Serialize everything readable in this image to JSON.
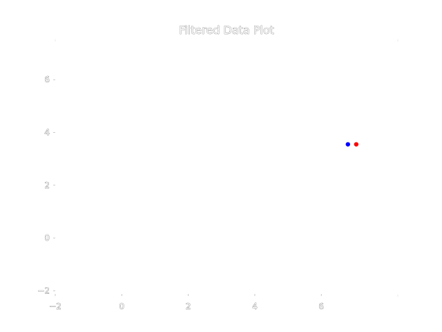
{
  "chart_data": {
    "type": "scatter",
    "title": "Filtered Data Plot",
    "xlabel": "",
    "ylabel": "",
    "xlim": [
      -2,
      8.3
    ],
    "ylim": [
      -2.2,
      7.5
    ],
    "x_ticks": [
      -2,
      0,
      2,
      4,
      6
    ],
    "y_ticks": [
      -2,
      0,
      2,
      4,
      6
    ],
    "x_tick_labels": [
      "−2",
      "0",
      "2",
      "4",
      "6"
    ],
    "y_tick_labels": [
      "−2",
      "0",
      "2",
      "4",
      "6"
    ],
    "grid": false,
    "axis_lines": false,
    "series": [
      {
        "color": "#0000ff",
        "points": [
          [
            6.8,
            3.55
          ]
        ]
      },
      {
        "color": "#ff0000",
        "points": [
          [
            7.05,
            3.55
          ]
        ]
      }
    ]
  }
}
